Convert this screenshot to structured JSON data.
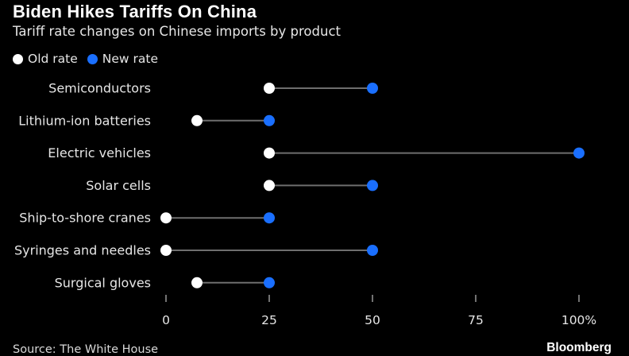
{
  "header": {
    "title": "Biden Hikes Tariffs On China",
    "subtitle": "Tariff rate changes on Chinese imports by product"
  },
  "legend": {
    "old_label": "Old rate",
    "new_label": "New rate"
  },
  "footer": {
    "source": "Source: The White House",
    "brand": "Bloomberg"
  },
  "colors": {
    "old": "#ffffff",
    "new": "#1a6fff",
    "connector": "#6e6e6e",
    "background": "#000000"
  },
  "chart_data": {
    "type": "dot-range",
    "title": "Biden Hikes Tariffs On China",
    "subtitle": "Tariff rate changes on Chinese imports by product",
    "categories": [
      "Semiconductors",
      "Lithium-ion batteries",
      "Electric vehicles",
      "Solar cells",
      "Ship-to-shore cranes",
      "Syringes and needles",
      "Surgical gloves"
    ],
    "series": [
      {
        "name": "Old rate",
        "values": [
          25,
          7.5,
          25,
          25,
          0,
          0,
          7.5
        ]
      },
      {
        "name": "New rate",
        "values": [
          50,
          25,
          100,
          50,
          25,
          50,
          25
        ]
      }
    ],
    "xlim": [
      0,
      100
    ],
    "xticks": [
      0,
      25,
      50,
      75,
      100
    ],
    "xtick_labels": [
      "0",
      "25",
      "50",
      "75",
      "100%"
    ],
    "grid": false,
    "legend_position": "top-left"
  }
}
